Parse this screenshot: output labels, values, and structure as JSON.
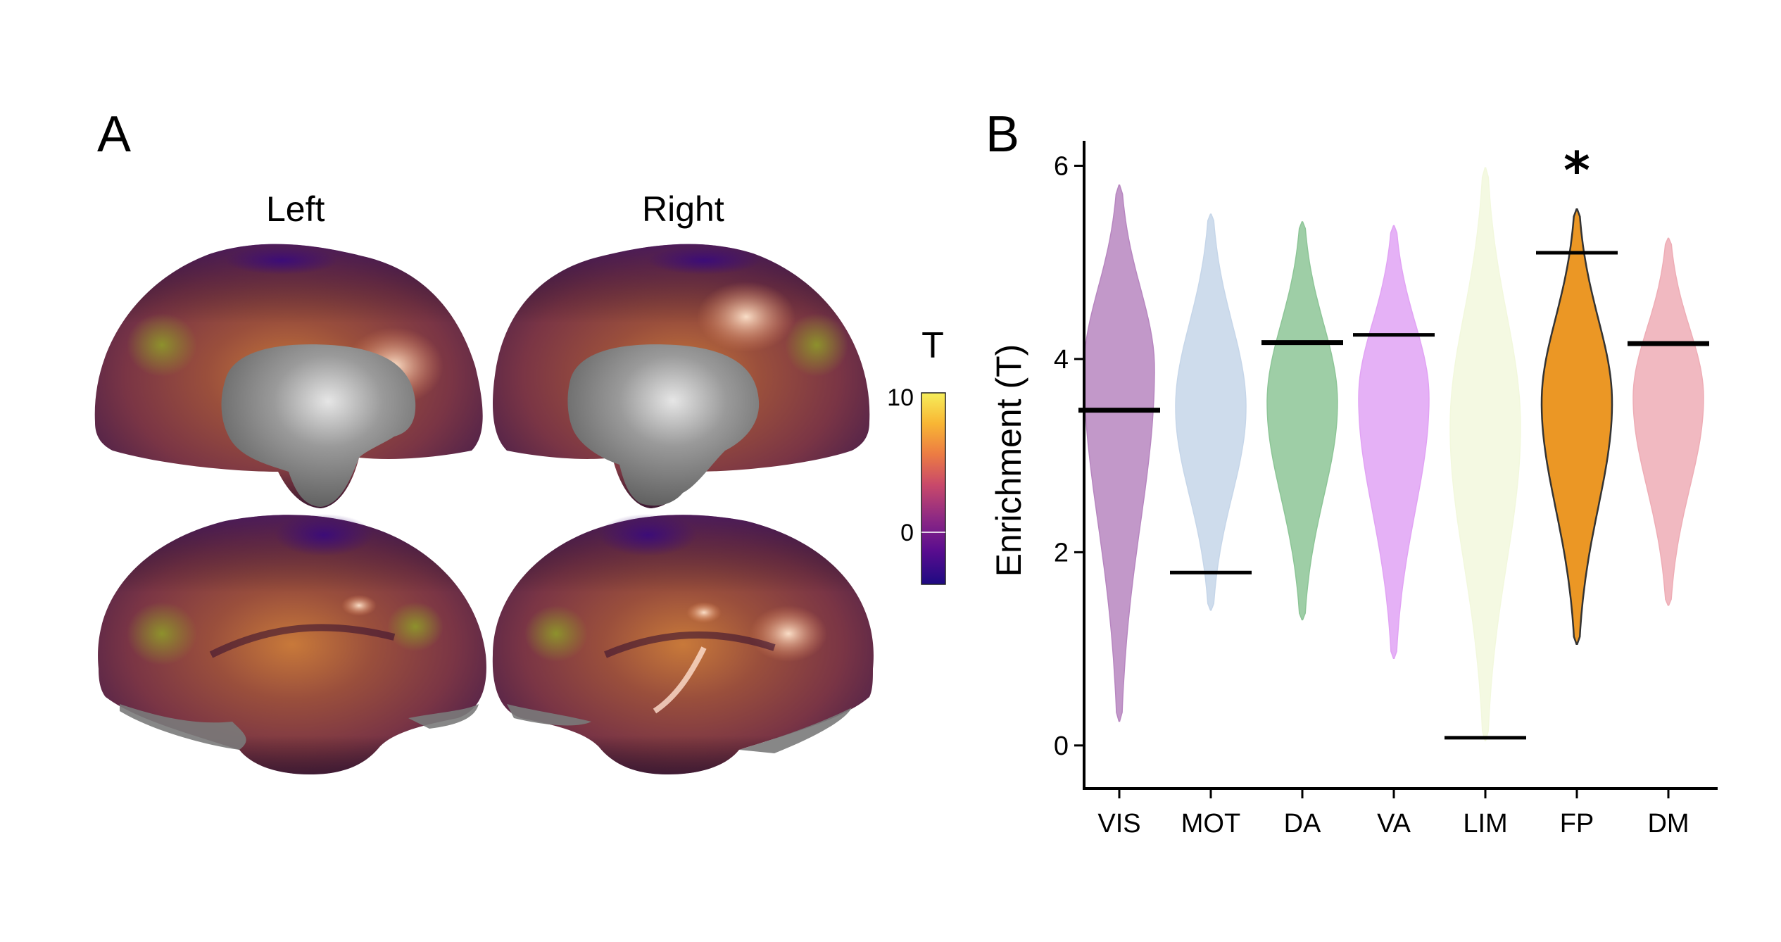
{
  "panel_a": {
    "label": "A",
    "left_label": "Left",
    "right_label": "Right",
    "colorbar": {
      "title": "T",
      "max_label": "10",
      "zero_label": "0",
      "range": [
        -4,
        10
      ],
      "colors": [
        "#1e0a82",
        "#5b0d8f",
        "#8f2a83",
        "#c9496a",
        "#ec7c43",
        "#f8b634",
        "#f6ee5a"
      ]
    }
  },
  "panel_b": {
    "label": "B",
    "significance_marker": "*"
  },
  "chart_data": {
    "type": "violin",
    "ylabel": "Enrichment (T)",
    "ylim": [
      -0.3,
      6.2
    ],
    "yticks": [
      0,
      2,
      4,
      6
    ],
    "categories": [
      "VIS",
      "MOT",
      "DA",
      "VA",
      "LIM",
      "FP",
      "DM"
    ],
    "series": [
      {
        "category": "VIS",
        "color": "#b786c0",
        "observed": 3.47,
        "range": [
          0.25,
          5.8
        ],
        "median": 3.9,
        "significant": false
      },
      {
        "category": "MOT",
        "color": "#c6d6e9",
        "observed": 1.79,
        "range": [
          1.4,
          5.5
        ],
        "median": 3.5,
        "significant": false
      },
      {
        "category": "DA",
        "color": "#8dc597",
        "observed": 4.17,
        "range": [
          1.3,
          5.42
        ],
        "median": 3.55,
        "significant": false
      },
      {
        "category": "VA",
        "color": "#e1a3f4",
        "observed": 4.25,
        "range": [
          0.9,
          5.38
        ],
        "median": 3.6,
        "significant": false
      },
      {
        "category": "LIM",
        "color": "#f2f8dd",
        "observed": 0.08,
        "range": [
          0.05,
          5.98
        ],
        "median": 3.3,
        "significant": false
      },
      {
        "category": "FP",
        "color": "#eb9725",
        "observed": 5.1,
        "range": [
          1.05,
          5.55
        ],
        "median": 3.55,
        "significant": true
      },
      {
        "category": "DM",
        "color": "#eeadb6",
        "observed": 4.16,
        "range": [
          1.45,
          5.25
        ],
        "median": 3.6,
        "significant": false
      }
    ]
  }
}
